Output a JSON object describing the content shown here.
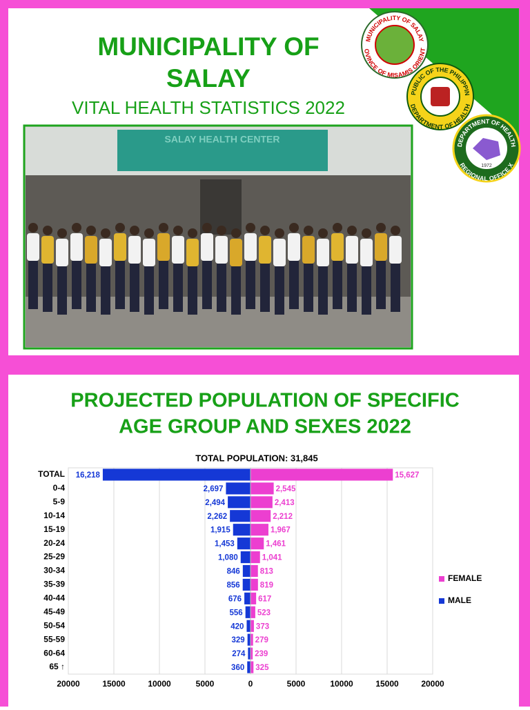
{
  "header": {
    "title_line1": "MUNICIPALITY OF",
    "title_line2": "SALAY",
    "subtitle": "VITAL HEALTH STATISTICS 2022"
  },
  "logos": [
    {
      "text_top": "MUNICIPALITY OF SALAY",
      "text_bottom": "PROVINCE OF MISAMIS ORIENTAL"
    },
    {
      "text_top": "REPUBLIC OF THE PHILIPPINES",
      "text_bottom": "DEPARTMENT OF HEALTH"
    },
    {
      "text_top": "DEPARTMENT OF HEALTH",
      "text_bottom": "REGIONAL OFFICE X",
      "year": "1972"
    }
  ],
  "photo": {
    "sign": "SALAY HEALTH CENTER"
  },
  "chart_data": {
    "type": "bar",
    "orientation": "horizontal",
    "title": [
      "PROJECTED POPULATION OF SPECIFIC",
      "AGE GROUP AND SEXES 2022"
    ],
    "subtitle": "TOTAL POPULATION: 31,845",
    "categories": [
      "TOTAL",
      "0-4",
      "5-9",
      "10-14",
      "15-19",
      "20-24",
      "25-29",
      "30-34",
      "35-39",
      "40-44",
      "45-49",
      "50-54",
      "55-59",
      "60-64",
      "65 ↑"
    ],
    "series": [
      {
        "name": "FEMALE",
        "color": "#ec3fd0",
        "values": [
          15627,
          2545,
          2413,
          2212,
          1967,
          1461,
          1041,
          813,
          819,
          617,
          523,
          373,
          279,
          239,
          325
        ],
        "value_labels": [
          "15,627",
          "2,545",
          "2,413",
          "2,212",
          "1,967",
          "1,461",
          "1,041",
          "813",
          "819",
          "617",
          "523",
          "373",
          "279",
          "239",
          "325"
        ]
      },
      {
        "name": "MALE",
        "color": "#1538d6",
        "values": [
          -16218,
          -2697,
          -2494,
          -2262,
          -1915,
          -1453,
          -1080,
          -846,
          -856,
          -676,
          -556,
          -420,
          -329,
          -274,
          -360
        ],
        "value_labels": [
          "16,218",
          "2,697",
          "2,494",
          "2,262",
          "1,915",
          "1,453",
          "1,080",
          "846",
          "856",
          "676",
          "556",
          "420",
          "329",
          "274",
          "360"
        ]
      }
    ],
    "xlim": [
      -20000,
      20000
    ],
    "xticks": [
      {
        "value": -20000,
        "label": "20000"
      },
      {
        "value": -15000,
        "label": "15000"
      },
      {
        "value": -10000,
        "label": "10000"
      },
      {
        "value": -5000,
        "label": "5000"
      },
      0,
      5000,
      10000,
      15000,
      20000
    ],
    "grid": true,
    "legend": "right"
  }
}
